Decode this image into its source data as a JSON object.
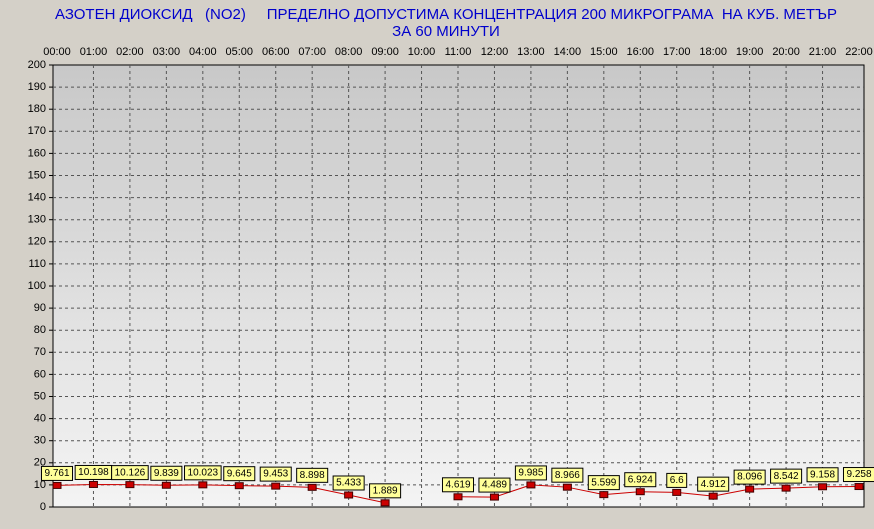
{
  "chart_data": {
    "type": "line",
    "title": "АЗОТЕН ДИОКСИД   (NO2)     ПРЕДЕЛНО ДОПУСТИМА КОНЦЕНТРАЦИЯ 200 МИКРОГРАМА  НА КУБ. МЕТЪР",
    "subtitle": "ЗА 60 МИНУТИ",
    "categories": [
      "00:00",
      "01:00",
      "02:00",
      "03:00",
      "04:00",
      "05:00",
      "06:00",
      "07:00",
      "08:00",
      "09:00",
      "10:00",
      "11:00",
      "12:00",
      "13:00",
      "14:00",
      "15:00",
      "16:00",
      "17:00",
      "18:00",
      "19:00",
      "20:00",
      "21:00",
      "22:00"
    ],
    "values": [
      9.761,
      10.198,
      10.126,
      9.839,
      10.023,
      9.645,
      9.453,
      8.898,
      5.433,
      1.889,
      null,
      4.619,
      4.489,
      9.985,
      8.966,
      5.599,
      6.924,
      6.6,
      4.912,
      8.096,
      8.542,
      9.158,
      9.258
    ],
    "color": "#cc0000",
    "ylim": [
      0,
      200
    ],
    "yticks": [
      0,
      10,
      20,
      30,
      40,
      50,
      60,
      70,
      80,
      90,
      100,
      110,
      120,
      130,
      140,
      150,
      160,
      170,
      180,
      190,
      200
    ],
    "grid": true
  }
}
